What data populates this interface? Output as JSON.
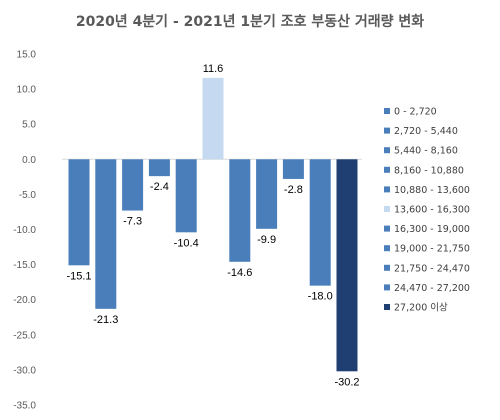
{
  "chart_data": {
    "type": "bar",
    "title": "2020년 4분기 - 2021년 1분기 조호 부동산 거래량 변화",
    "xlabel": "",
    "ylabel": "",
    "ylim": [
      -35.0,
      15.0
    ],
    "yticks": [
      "15.0",
      "10.0",
      "5.0",
      "0.0",
      "-5.0",
      "-10.0",
      "-15.0",
      "-20.0",
      "-25.0",
      "-30.0",
      "-35.0"
    ],
    "grid": false,
    "legend_position": "right",
    "series": [
      {
        "name": "0 - 2,720",
        "value": -15.1,
        "color": "#4a7ebb"
      },
      {
        "name": "2,720 - 5,440",
        "value": -21.3,
        "color": "#4a7ebb"
      },
      {
        "name": "5,440 - 8,160",
        "value": -7.3,
        "color": "#4a7ebb"
      },
      {
        "name": "8,160 - 10,880",
        "value": -2.4,
        "color": "#4a7ebb"
      },
      {
        "name": "10,880 - 13,600",
        "value": -10.4,
        "color": "#4a7ebb"
      },
      {
        "name": "13,600 - 16,300",
        "value": 11.6,
        "color": "#c5d9f1"
      },
      {
        "name": "16,300 - 19,000",
        "value": -14.6,
        "color": "#4a7ebb"
      },
      {
        "name": "19,000 - 21,750",
        "value": -9.9,
        "color": "#4a7ebb"
      },
      {
        "name": "21,750 - 24,470",
        "value": -2.8,
        "color": "#4a7ebb"
      },
      {
        "name": "24,470 - 27,200",
        "value": -18.0,
        "color": "#4a7ebb"
      },
      {
        "name": "27,200 이상",
        "value": -30.2,
        "color": "#1f3f73"
      }
    ],
    "data_labels": [
      "-15.1",
      "-21.3",
      "-7.3",
      "-2.4",
      "-10.4",
      "11.6",
      "-14.6",
      "-9.9",
      "-2.8",
      "-18.0",
      "-30.2"
    ]
  }
}
